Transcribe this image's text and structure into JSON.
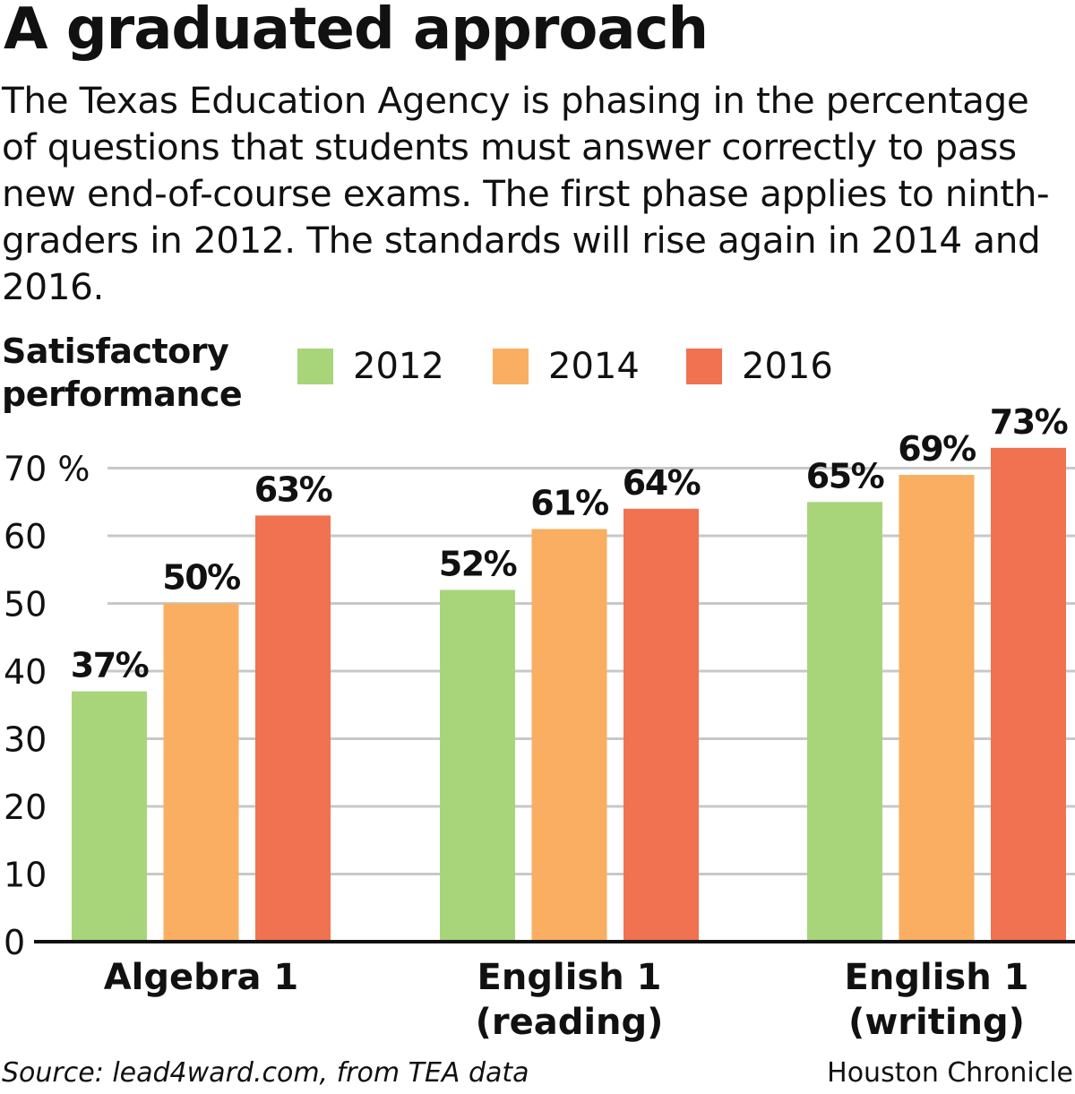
{
  "title": "A graduated approach",
  "subtitle": "The Texas Education Agency is phasing in the percentage of questions that students must answer correctly to pass new end-of-course exams. The first phase applies to ninth-graders in 2012. The standards will rise again in 2014 and 2016.",
  "footer": {
    "source": "Source: lead4ward.com, from TEA data",
    "credit": "Houston Chronicle"
  },
  "chart_data": {
    "type": "bar",
    "ylabel": "Satisfactory performance",
    "ylim": [
      0,
      70
    ],
    "yticks": [
      "0",
      "10",
      "20",
      "30",
      "40",
      "50",
      "60",
      "70 %"
    ],
    "grid": true,
    "legend_position": "top",
    "categories": [
      "Algebra 1",
      "English 1 (reading)",
      "English 1 (writing)"
    ],
    "category_lines": [
      [
        "Algebra 1"
      ],
      [
        "English 1",
        "(reading)"
      ],
      [
        "English 1",
        "(writing)"
      ]
    ],
    "series": [
      {
        "name": "2012",
        "color": "#a8d57a",
        "values": [
          37,
          52,
          65
        ],
        "labels": [
          "37%",
          "52%",
          "65%"
        ]
      },
      {
        "name": "2014",
        "color": "#f9ae61",
        "values": [
          50,
          61,
          69
        ],
        "labels": [
          "50%",
          "61%",
          "69%"
        ]
      },
      {
        "name": "2016",
        "color": "#f07251",
        "values": [
          63,
          64,
          73
        ],
        "labels": [
          "63%",
          "64%",
          "73%"
        ]
      }
    ]
  }
}
